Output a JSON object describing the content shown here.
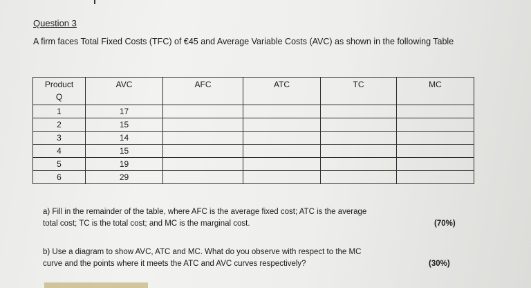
{
  "question": {
    "title": "Question 3",
    "intro": "A firm faces Total Fixed Costs (TFC) of €45 and Average Variable Costs (AVC) as shown in the following Table"
  },
  "table": {
    "headers": {
      "product": "Product",
      "product_sub": "Q",
      "avc": "AVC",
      "afc": "AFC",
      "atc": "ATC",
      "tc": "TC",
      "mc": "MC"
    },
    "rows": [
      {
        "q": "1",
        "avc": "17"
      },
      {
        "q": "2",
        "avc": "15"
      },
      {
        "q": "3",
        "avc": "14"
      },
      {
        "q": "4",
        "avc": "15"
      },
      {
        "q": "5",
        "avc": "19"
      },
      {
        "q": "6",
        "avc": "29"
      }
    ]
  },
  "part_a": {
    "line1": "a) Fill in the remainder of the table, where AFC is the average fixed cost; ATC is the average",
    "line2": "total cost; TC is the total cost; and MC is the marginal cost.",
    "weight": "(70%)"
  },
  "part_b": {
    "line1": "b) Use a diagram to show AVC, ATC and MC. What do you observe with respect to the MC",
    "line2": "curve and the points where it meets the ATC and AVC curves respectively?",
    "weight": "(30%)"
  }
}
